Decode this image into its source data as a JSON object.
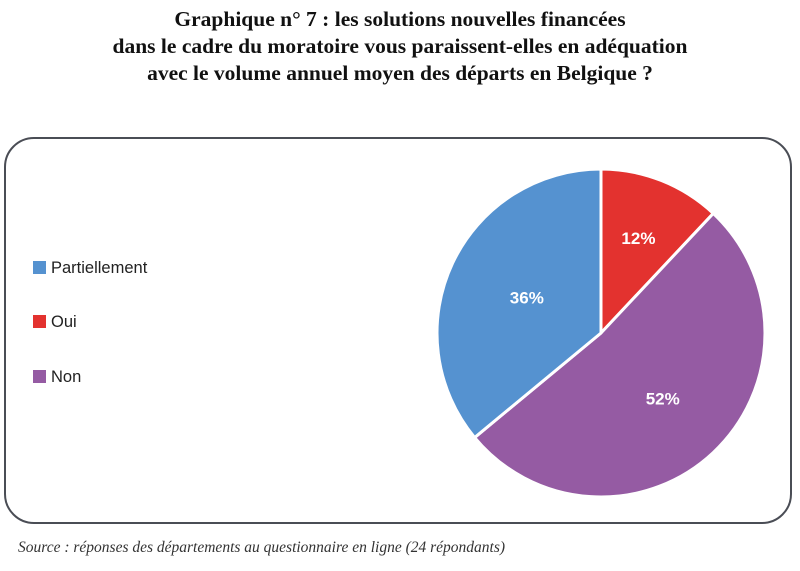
{
  "chart_data": {
    "type": "pie",
    "title": [
      "Graphique n° 7 : les solutions nouvelles financées",
      "dans le cadre du moratoire vous paraissent-elles en adéquation",
      "avec le volume annuel moyen des départs en Belgique ?"
    ],
    "categories": [
      "Oui",
      "Non",
      "Partiellement"
    ],
    "values": [
      12,
      52,
      36
    ],
    "data_labels": [
      "12%",
      "52%",
      "36%"
    ],
    "colors": [
      "#e3322f",
      "#955ba3",
      "#5592d0"
    ],
    "legend": {
      "placement": "left",
      "entries": [
        {
          "label": "Partiellement",
          "color": "#5592d0"
        },
        {
          "label": "Oui",
          "color": "#e3322f"
        },
        {
          "label": "Non",
          "color": "#955ba3"
        }
      ]
    },
    "source": "Source : réponses des départements au questionnaire en ligne (24 répondants)"
  }
}
